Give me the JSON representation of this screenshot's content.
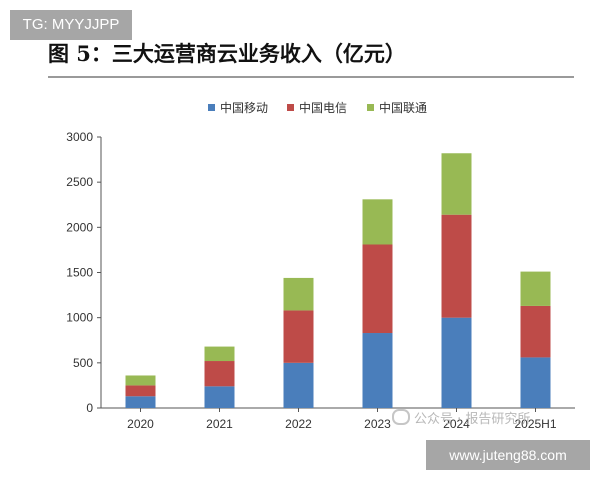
{
  "watermarks": {
    "top_left": "TG: MYYJJPP",
    "bottom_right": "www.juteng88.com",
    "wechat": "公众号 · 报告研究所"
  },
  "chart_data": {
    "type": "bar",
    "stacked": true,
    "title": "图 5：三大运营商云业务收入（亿元）",
    "categories": [
      "2020",
      "2021",
      "2022",
      "2023",
      "2024",
      "2025H1"
    ],
    "series": [
      {
        "name": "中国移动",
        "color": "#4a7ebb",
        "values": [
          130,
          240,
          500,
          830,
          1000,
          560
        ]
      },
      {
        "name": "中国电信",
        "color": "#be4b48",
        "values": [
          120,
          280,
          580,
          980,
          1140,
          570
        ]
      },
      {
        "name": "中国联通",
        "color": "#98b954",
        "values": [
          110,
          160,
          360,
          500,
          680,
          380
        ]
      }
    ],
    "ylim": [
      0,
      3000
    ],
    "yticks": [
      0,
      500,
      1000,
      1500,
      2000,
      2500,
      3000
    ],
    "xlabel": "",
    "ylabel": "",
    "legend": "top-center",
    "grid": false
  }
}
